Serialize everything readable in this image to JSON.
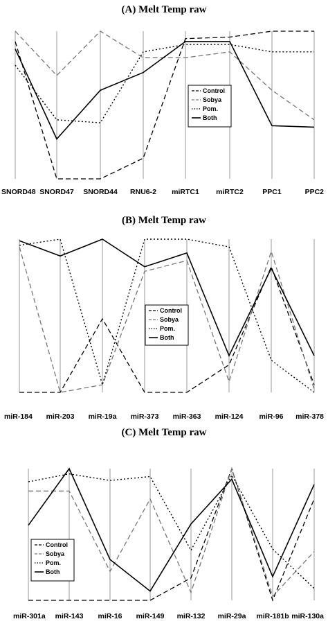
{
  "chart_data": [
    {
      "type": "line",
      "title": "(A) Melt Temp raw",
      "categories": [
        "SNORD48",
        "SNORD47",
        "SNORD44",
        "RNU6-2",
        "miRTC1",
        "miRTC2",
        "PPC1",
        "PPC2"
      ],
      "ylim": [
        0,
        1
      ],
      "grid": "vertical axes only",
      "legend": {
        "placement": "middle-right",
        "entries": [
          "Control",
          "Sobya",
          "Pom.",
          "Both"
        ]
      },
      "series": [
        {
          "name": "Control",
          "style": "dashed",
          "color": "#000000",
          "values": [
            0.93,
            0.0,
            0.0,
            0.14,
            0.95,
            0.96,
            1.0,
            1.0
          ]
        },
        {
          "name": "Sobya",
          "style": "dashed",
          "color": "#777777",
          "values": [
            1.0,
            0.7,
            1.0,
            0.82,
            0.82,
            0.86,
            0.6,
            0.4
          ]
        },
        {
          "name": "Pom.",
          "style": "dotted",
          "color": "#000000",
          "values": [
            0.77,
            0.4,
            0.38,
            0.86,
            0.91,
            0.91,
            0.86,
            0.86
          ]
        },
        {
          "name": "Both",
          "style": "solid",
          "color": "#000000",
          "values": [
            0.88,
            0.27,
            0.6,
            0.72,
            0.93,
            0.93,
            0.36,
            0.35
          ]
        }
      ]
    },
    {
      "type": "line",
      "title": "(B) Melt Temp raw",
      "categories": [
        "miR-184",
        "miR-203",
        "miR-19a",
        "miR-373",
        "miR-363",
        "miR-124",
        "miR-96",
        "miR-378"
      ],
      "ylim": [
        0,
        1
      ],
      "grid": "vertical axes only",
      "legend": {
        "placement": "middle-center",
        "entries": [
          "Control",
          "Sobya",
          "Pom.",
          "Both"
        ]
      },
      "series": [
        {
          "name": "Control",
          "style": "dashed",
          "color": "#000000",
          "values": [
            0.0,
            0.0,
            0.48,
            0.0,
            0.0,
            0.18,
            0.82,
            0.05
          ]
        },
        {
          "name": "Sobya",
          "style": "dashed",
          "color": "#777777",
          "values": [
            0.95,
            0.0,
            0.05,
            0.79,
            0.86,
            0.07,
            0.92,
            0.02
          ]
        },
        {
          "name": "Pom.",
          "style": "dotted",
          "color": "#000000",
          "values": [
            0.96,
            1.0,
            0.05,
            1.0,
            1.0,
            0.95,
            0.21,
            0.0
          ]
        },
        {
          "name": "Both",
          "style": "solid",
          "color": "#000000",
          "values": [
            0.99,
            0.89,
            1.0,
            0.82,
            0.91,
            0.24,
            0.81,
            0.24
          ]
        }
      ]
    },
    {
      "type": "line",
      "title": "(C) Melt Temp raw",
      "categories": [
        "miR-301a",
        "miR-143",
        "miR-16",
        "miR-149",
        "miR-132",
        "miR-29a",
        "miR-181b",
        "miR-130a"
      ],
      "ylim": [
        0,
        1
      ],
      "grid": "vertical axes only",
      "legend": {
        "placement": "bottom-left",
        "entries": [
          "Control",
          "Sobya",
          "Pom.",
          "Both"
        ]
      },
      "series": [
        {
          "name": "Control",
          "style": "dashed",
          "color": "#000000",
          "values": [
            0.0,
            0.0,
            0.0,
            0.0,
            0.17,
            1.0,
            0.0,
            0.77
          ]
        },
        {
          "name": "Sobya",
          "style": "dashed",
          "color": "#777777",
          "values": [
            0.83,
            0.83,
            0.22,
            0.77,
            0.06,
            1.0,
            0.03,
            0.37
          ]
        },
        {
          "name": "Pom.",
          "style": "dotted",
          "color": "#000000",
          "values": [
            0.9,
            0.96,
            0.91,
            0.94,
            0.38,
            0.95,
            0.39,
            0.09
          ]
        },
        {
          "name": "Both",
          "style": "solid",
          "color": "#000000",
          "values": [
            0.57,
            1.0,
            0.31,
            0.07,
            0.58,
            0.92,
            0.18,
            0.88
          ]
        }
      ]
    }
  ]
}
